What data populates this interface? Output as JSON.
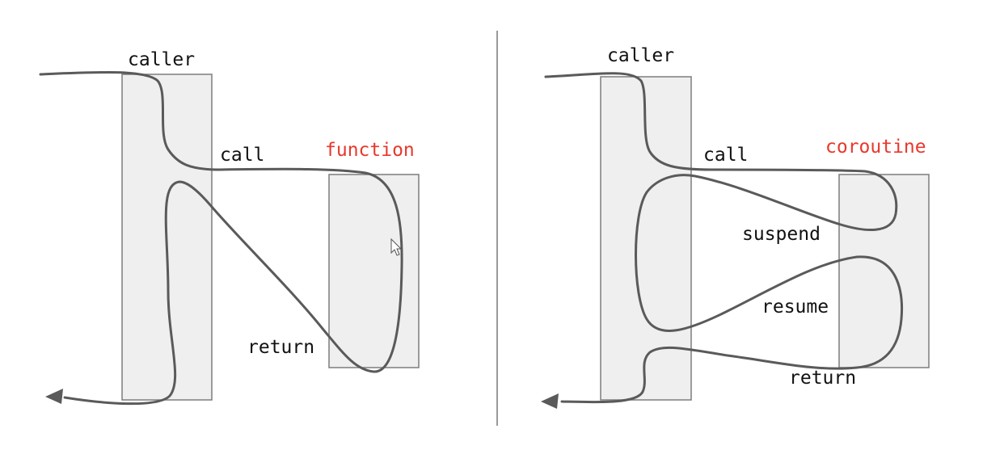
{
  "accent_color": "#e8382c",
  "line_color": "#5a5a5a",
  "box_fill": "#efefef",
  "left": {
    "caller_label": "caller",
    "call_label": "call",
    "callee_label": "function",
    "return_label": "return"
  },
  "right": {
    "caller_label": "caller",
    "call_label": "call",
    "callee_label": "coroutine",
    "suspend_label": "suspend",
    "resume_label": "resume",
    "return_label": "return"
  },
  "icons": {
    "arrowhead": "arrowhead-icon",
    "cursor": "mouse-cursor-icon"
  }
}
